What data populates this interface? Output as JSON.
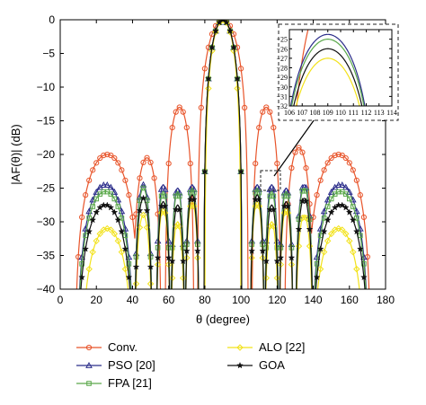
{
  "chart_data": {
    "type": "line",
    "xlabel": "θ (degree)",
    "ylabel": "|AF(θ)| (dB)",
    "xlim": [
      0,
      180
    ],
    "ylim": [
      -40,
      0
    ],
    "xticks": [
      0,
      20,
      40,
      60,
      80,
      100,
      120,
      140,
      160,
      180
    ],
    "yticks": [
      0,
      -5,
      -10,
      -15,
      -20,
      -25,
      -30,
      -35,
      -40
    ],
    "xtick_labels": [
      "0",
      "20",
      "40",
      "60",
      "80",
      "100",
      "120",
      "140",
      "160",
      "180"
    ],
    "ytick_labels": [
      "0",
      "−5",
      "−10",
      "−15",
      "−20",
      "−25",
      "−30",
      "−35",
      "−40"
    ],
    "grid": false,
    "legend_position": "below",
    "series": [
      {
        "name": "Conv.",
        "color": "#e8542a",
        "marker": "circle",
        "main_lobe_half_width": 14,
        "sidelobes": [
          {
            "center": 26,
            "peak": -20,
            "half_width": 18
          },
          {
            "center": 48,
            "peak": -20.5,
            "half_width": 8
          },
          {
            "center": 66,
            "peak": -13,
            "half_width": 8
          },
          {
            "center": 114,
            "peak": -13,
            "half_width": 8
          },
          {
            "center": 132,
            "peak": -19,
            "half_width": 8
          },
          {
            "center": 154,
            "peak": -20,
            "half_width": 18
          }
        ]
      },
      {
        "name": "PSO [20]",
        "color": "#2b2d8a",
        "marker": "triangle",
        "main_lobe_half_width": 10.5,
        "sidelobes": [
          {
            "center": 25,
            "peak": -24.5,
            "half_width": 16
          },
          {
            "center": 46,
            "peak": -24.5,
            "half_width": 5
          },
          {
            "center": 57,
            "peak": -24.5,
            "half_width": 4
          },
          {
            "center": 65,
            "peak": -25,
            "half_width": 4
          },
          {
            "center": 73,
            "peak": -24.5,
            "half_width": 4
          },
          {
            "center": 109,
            "peak": -24.5,
            "half_width": 4
          },
          {
            "center": 117,
            "peak": -24.5,
            "half_width": 4
          },
          {
            "center": 125,
            "peak": -25,
            "half_width": 4
          },
          {
            "center": 135,
            "peak": -24.5,
            "half_width": 5
          },
          {
            "center": 155,
            "peak": -24.5,
            "half_width": 16
          }
        ]
      },
      {
        "name": "FPA [21]",
        "color": "#5aa84a",
        "marker": "square",
        "main_lobe_half_width": 10.5,
        "sidelobes": [
          {
            "center": 25,
            "peak": -25.5,
            "half_width": 16
          },
          {
            "center": 46,
            "peak": -25,
            "half_width": 5
          },
          {
            "center": 57,
            "peak": -25.5,
            "half_width": 4
          },
          {
            "center": 65,
            "peak": -25.5,
            "half_width": 4
          },
          {
            "center": 73,
            "peak": -25,
            "half_width": 4
          },
          {
            "center": 109,
            "peak": -25,
            "half_width": 4
          },
          {
            "center": 117,
            "peak": -25.5,
            "half_width": 4
          },
          {
            "center": 125,
            "peak": -25.5,
            "half_width": 4
          },
          {
            "center": 135,
            "peak": -25,
            "half_width": 5
          },
          {
            "center": 155,
            "peak": -25.5,
            "half_width": 16
          }
        ]
      },
      {
        "name": "ALO [22]",
        "color": "#f2e21b",
        "marker": "diamond",
        "main_lobe_half_width": 10,
        "sidelobes": [
          {
            "center": 26,
            "peak": -31,
            "half_width": 15
          },
          {
            "center": 46,
            "peak": -29,
            "half_width": 5
          },
          {
            "center": 57,
            "peak": -28,
            "half_width": 4
          },
          {
            "center": 65,
            "peak": -30,
            "half_width": 4
          },
          {
            "center": 73,
            "peak": -27,
            "half_width": 4
          },
          {
            "center": 109,
            "peak": -27,
            "half_width": 4
          },
          {
            "center": 117,
            "peak": -30,
            "half_width": 4
          },
          {
            "center": 125,
            "peak": -28,
            "half_width": 4
          },
          {
            "center": 135,
            "peak": -29,
            "half_width": 5
          },
          {
            "center": 154,
            "peak": -31,
            "half_width": 15
          }
        ]
      },
      {
        "name": "GOA",
        "color": "#111111",
        "marker": "star",
        "main_lobe_half_width": 10.5,
        "sidelobes": [
          {
            "center": 25,
            "peak": -27.5,
            "half_width": 16
          },
          {
            "center": 46,
            "peak": -26.5,
            "half_width": 5
          },
          {
            "center": 57,
            "peak": -27,
            "half_width": 4
          },
          {
            "center": 65,
            "peak": -27.5,
            "half_width": 4
          },
          {
            "center": 73,
            "peak": -26,
            "half_width": 4
          },
          {
            "center": 109,
            "peak": -26,
            "half_width": 4
          },
          {
            "center": 117,
            "peak": -27.5,
            "half_width": 4
          },
          {
            "center": 125,
            "peak": -27,
            "half_width": 4
          },
          {
            "center": 135,
            "peak": -26.5,
            "half_width": 5
          },
          {
            "center": 155,
            "peak": -27.5,
            "half_width": 16
          }
        ]
      }
    ],
    "inset": {
      "xlim": [
        106,
        114
      ],
      "ylim": [
        -32,
        -24
      ],
      "xticks": [
        106,
        107,
        108,
        109,
        110,
        111,
        112,
        113,
        114
      ],
      "yticks": [
        -25,
        -26,
        -27,
        -28,
        -29,
        -30,
        -31,
        -32
      ],
      "xtick_labels": [
        "106",
        "107",
        "108",
        "109",
        "110",
        "111",
        "112",
        "113",
        "114"
      ],
      "ytick_labels": [
        "−25",
        "−26",
        "−27",
        "−28",
        "−29",
        "−30",
        "−31",
        "−32"
      ],
      "zoom_region_x": [
        106,
        114
      ],
      "zoom_region_y": [
        -32,
        -24
      ]
    }
  }
}
